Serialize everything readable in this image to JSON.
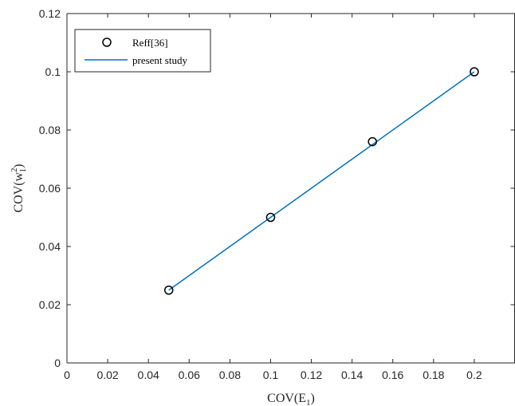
{
  "chart_data": {
    "type": "scatter",
    "x_range": [
      0,
      0.22
    ],
    "y_range": [
      0,
      0.12
    ],
    "x_ticks": [
      "0",
      "0.02",
      "0.04",
      "0.06",
      "0.08",
      "0.1",
      "0.12",
      "0.14",
      "0.16",
      "0.18",
      "0.2"
    ],
    "x_tick_values": [
      0,
      0.02,
      0.04,
      0.06,
      0.08,
      0.1,
      0.12,
      0.14,
      0.16,
      0.18,
      0.2
    ],
    "y_ticks": [
      "0",
      "0.02",
      "0.04",
      "0.06",
      "0.08",
      "0.1",
      "0.12"
    ],
    "y_tick_values": [
      0,
      0.02,
      0.04,
      0.06,
      0.08,
      0.1,
      0.12
    ],
    "xlabel": {
      "base": "COV(E",
      "sub": "1",
      "close": ")"
    },
    "ylabel": {
      "base": "COV(w",
      "sup": "2",
      "sub": "1",
      "close": ")"
    },
    "grid": false,
    "legend_position": "top-left",
    "series": [
      {
        "name": "Reff[36]",
        "style": "markers",
        "marker": "circle-open",
        "color": "#000000",
        "x": [
          0.05,
          0.1,
          0.15,
          0.2
        ],
        "y": [
          0.025,
          0.05,
          0.076,
          0.1
        ]
      },
      {
        "name": "present study",
        "style": "line",
        "color": "#0072BD",
        "x": [
          0.05,
          0.1,
          0.15,
          0.2
        ],
        "y": [
          0.025,
          0.05,
          0.075,
          0.1
        ]
      }
    ]
  }
}
